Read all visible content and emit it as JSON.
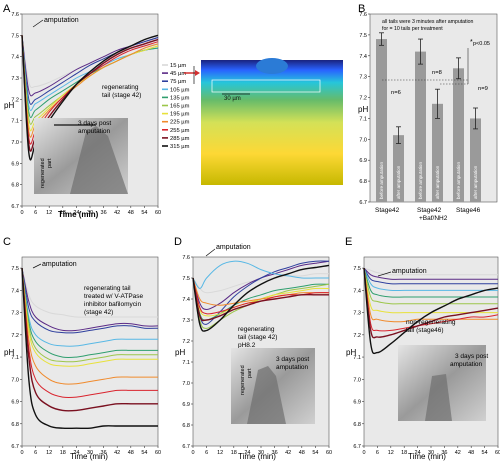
{
  "panel_letters": [
    "A",
    "B",
    "C",
    "D",
    "E"
  ],
  "colors": {
    "c15": "#d9d9d9",
    "c45": "#5a2a86",
    "c75": "#2e3f9e",
    "c105": "#58b8e5",
    "c135": "#2f9e6e",
    "c165": "#9cc64a",
    "c195": "#e8e13a",
    "c225": "#f08a2c",
    "c255": "#d9232d",
    "c285": "#7a1020",
    "c315": "#111111",
    "bar": "#9a9a9a"
  },
  "panelA": {
    "annotation_amputation": "amputation",
    "label_regen": [
      "regenerating",
      "tail (stage 42)"
    ],
    "inset_text": [
      "3 days post",
      "amputation"
    ],
    "inset_side": [
      "regenerated",
      "part"
    ],
    "xlabel": "Time (min)",
    "ylabel": "pH",
    "legend": [
      "15 µm",
      "45 µm",
      "75 µm",
      "105 µm",
      "135 µm",
      "165 µm",
      "195 µm",
      "225 µm",
      "255 µm",
      "285 µm",
      "315 µm"
    ],
    "scale_label": "30 µm"
  },
  "panelB": {
    "note": [
      "all tails were 3 minutes after amputation",
      "for = 10 tails per treatment"
    ],
    "signif": [
      "*",
      "p<0.05"
    ],
    "n_labels": [
      "n=6",
      "n=8",
      "n=9"
    ],
    "group_labels": [
      "Stage42",
      "Stage42",
      "+Baf/NH2",
      "Stage46"
    ],
    "bar_labels": [
      "before amputation",
      "after amputation"
    ],
    "ylabel": "pH"
  },
  "panelC": {
    "annotation_amputation": "amputation",
    "label": [
      "regenerating tail",
      "treated w/ V-ATPase",
      "inhibitor bafilomycin",
      "(stage 42)"
    ],
    "xlabel": "Time (min)",
    "ylabel": "pH"
  },
  "panelD": {
    "annotation_amputation": "amputation",
    "label": [
      "regenerating",
      "tail (stage 42)",
      "pH8.2"
    ],
    "inset_text": [
      "3 days post",
      "amputation"
    ],
    "inset_side": [
      "regenerated",
      "part"
    ],
    "xlabel": "Time (min)",
    "ylabel": "pH"
  },
  "panelE": {
    "annotation_amputation": "amputation",
    "label": [
      "non-regenerating",
      "tail (stage46)"
    ],
    "inset_text": [
      "3 days post",
      "amputation"
    ],
    "xlabel": "Time (min)",
    "ylabel": "pH"
  },
  "chart_data": [
    {
      "panel": "A",
      "type": "line",
      "x": [
        0,
        3,
        6,
        12,
        18,
        24,
        30,
        36,
        42,
        48,
        54,
        60
      ],
      "xticks": [
        "0",
        "6",
        "12",
        "18",
        "24",
        "30",
        "36",
        "42",
        "48",
        "54",
        "60"
      ],
      "yticks": [
        "6.7",
        "6.8",
        "6.9",
        "7.0",
        "7.1",
        "7.2",
        "7.3",
        "7.4",
        "7.5",
        "7.6"
      ],
      "ylim": [
        6.7,
        7.6
      ],
      "xlim": [
        0,
        60
      ],
      "series": [
        {
          "name": "15 µm",
          "color": "c15",
          "y": [
            7.5,
            7.28,
            7.26,
            7.28,
            7.31,
            7.34,
            7.37,
            7.4,
            7.42,
            7.44,
            7.45,
            7.46
          ]
        },
        {
          "name": "45 µm",
          "color": "c45",
          "y": [
            7.5,
            7.24,
            7.23,
            7.26,
            7.3,
            7.34,
            7.37,
            7.4,
            7.43,
            7.45,
            7.47,
            7.49
          ]
        },
        {
          "name": "75 µm",
          "color": "c75",
          "y": [
            7.5,
            7.2,
            7.2,
            7.24,
            7.28,
            7.32,
            7.36,
            7.39,
            7.42,
            7.45,
            7.47,
            7.49
          ]
        },
        {
          "name": "105 µm",
          "color": "c105",
          "y": [
            7.5,
            7.17,
            7.18,
            7.22,
            7.26,
            7.3,
            7.33,
            7.36,
            7.39,
            7.41,
            7.43,
            7.44
          ]
        },
        {
          "name": "135 µm",
          "color": "c135",
          "y": [
            7.5,
            7.14,
            7.15,
            7.2,
            7.24,
            7.28,
            7.32,
            7.35,
            7.38,
            7.41,
            7.43,
            7.44
          ]
        },
        {
          "name": "165 µm",
          "color": "c165",
          "y": [
            7.5,
            7.11,
            7.12,
            7.17,
            7.22,
            7.27,
            7.31,
            7.35,
            7.38,
            7.41,
            7.43,
            7.45
          ]
        },
        {
          "name": "195 µm",
          "color": "c195",
          "y": [
            7.5,
            7.08,
            7.1,
            7.16,
            7.22,
            7.27,
            7.31,
            7.35,
            7.38,
            7.41,
            7.43,
            7.45
          ]
        },
        {
          "name": "225 µm",
          "color": "c225",
          "y": [
            7.5,
            7.05,
            7.08,
            7.15,
            7.21,
            7.26,
            7.31,
            7.35,
            7.38,
            7.41,
            7.44,
            7.46
          ]
        },
        {
          "name": "255 µm",
          "color": "c255",
          "y": [
            7.5,
            7.02,
            7.05,
            7.14,
            7.21,
            7.27,
            7.32,
            7.36,
            7.4,
            7.43,
            7.45,
            7.47
          ]
        },
        {
          "name": "285 µm",
          "color": "c285",
          "y": [
            7.5,
            6.99,
            7.02,
            7.12,
            7.2,
            7.27,
            7.32,
            7.37,
            7.41,
            7.44,
            7.46,
            7.48
          ]
        },
        {
          "name": "315 µm",
          "color": "c315",
          "y": [
            7.5,
            6.95,
            6.99,
            7.1,
            7.19,
            7.27,
            7.33,
            7.38,
            7.42,
            7.45,
            7.48,
            7.5
          ]
        }
      ]
    },
    {
      "panel": "B",
      "type": "bar",
      "yticks": [
        "6.7",
        "6.8",
        "6.9",
        "7.0",
        "7.1",
        "7.2",
        "7.3",
        "7.4",
        "7.5",
        "7.6"
      ],
      "ylim": [
        6.7,
        7.6
      ],
      "series": [
        {
          "name": "before amputation",
          "values": [
            7.48,
            7.42,
            7.34
          ]
        },
        {
          "name": "after amputation",
          "values": [
            7.02,
            7.17,
            7.1
          ]
        }
      ],
      "errors_before": [
        0.03,
        0.06,
        0.05
      ],
      "errors_after": [
        0.04,
        0.07,
        0.05
      ],
      "categories": [
        "Stage42",
        "Stage42 +Baf/NH2",
        "Stage46"
      ]
    },
    {
      "panel": "C",
      "type": "line",
      "x": [
        0,
        3,
        6,
        12,
        18,
        24,
        30,
        36,
        42,
        48,
        54,
        60
      ],
      "xticks": [
        "0",
        "6",
        "12",
        "18",
        "24",
        "30",
        "36",
        "42",
        "48",
        "54",
        "60"
      ],
      "yticks": [
        "6.7",
        "6.8",
        "6.9",
        "7.0",
        "7.1",
        "7.2",
        "7.3",
        "7.4",
        "7.5"
      ],
      "ylim": [
        6.7,
        7.55
      ],
      "xlim": [
        0,
        60
      ],
      "series": [
        {
          "name": "15 µm",
          "color": "c15",
          "y": [
            7.5,
            7.38,
            7.33,
            7.3,
            7.29,
            7.28,
            7.28,
            7.28,
            7.28,
            7.28,
            7.28,
            7.28
          ]
        },
        {
          "name": "45 µm",
          "color": "c45",
          "y": [
            7.5,
            7.35,
            7.28,
            7.24,
            7.22,
            7.22,
            7.23,
            7.24,
            7.25,
            7.25,
            7.24,
            7.24
          ]
        },
        {
          "name": "75 µm",
          "color": "c75",
          "y": [
            7.5,
            7.32,
            7.26,
            7.22,
            7.21,
            7.21,
            7.22,
            7.23,
            7.24,
            7.24,
            7.23,
            7.23
          ]
        },
        {
          "name": "105 µm",
          "color": "c105",
          "y": [
            7.5,
            7.28,
            7.2,
            7.16,
            7.15,
            7.15,
            7.16,
            7.17,
            7.18,
            7.18,
            7.18,
            7.18
          ]
        },
        {
          "name": "135 µm",
          "color": "c135",
          "y": [
            7.5,
            7.26,
            7.17,
            7.12,
            7.1,
            7.1,
            7.11,
            7.12,
            7.13,
            7.13,
            7.13,
            7.13
          ]
        },
        {
          "name": "165 µm",
          "color": "c165",
          "y": [
            7.5,
            7.24,
            7.14,
            7.09,
            7.08,
            7.08,
            7.09,
            7.1,
            7.11,
            7.11,
            7.11,
            7.11
          ]
        },
        {
          "name": "195 µm",
          "color": "c195",
          "y": [
            7.5,
            7.22,
            7.12,
            7.07,
            7.06,
            7.06,
            7.07,
            7.08,
            7.09,
            7.09,
            7.09,
            7.09
          ]
        },
        {
          "name": "225 µm",
          "color": "c225",
          "y": [
            7.5,
            7.18,
            7.06,
            7.0,
            6.98,
            6.98,
            6.99,
            7.0,
            7.01,
            7.01,
            7.01,
            7.01
          ]
        },
        {
          "name": "255 µm",
          "color": "c255",
          "y": [
            7.5,
            7.14,
            7.0,
            6.94,
            6.92,
            6.92,
            6.93,
            6.94,
            6.95,
            6.95,
            6.95,
            6.95
          ]
        },
        {
          "name": "285 µm",
          "color": "c285",
          "y": [
            7.5,
            7.1,
            6.94,
            6.88,
            6.86,
            6.86,
            6.87,
            6.88,
            6.89,
            6.89,
            6.89,
            6.89
          ]
        },
        {
          "name": "315 µm",
          "color": "c315",
          "y": [
            7.5,
            7.0,
            6.84,
            6.79,
            6.78,
            6.78,
            6.78,
            6.79,
            6.79,
            6.79,
            6.79,
            6.79
          ]
        }
      ]
    },
    {
      "panel": "D",
      "type": "line",
      "x": [
        0,
        3,
        6,
        12,
        18,
        24,
        30,
        36,
        42,
        48,
        54,
        60
      ],
      "xticks": [
        "0",
        "6",
        "12",
        "18",
        "24",
        "30",
        "36",
        "42",
        "48",
        "54",
        "60"
      ],
      "yticks": [
        "6.7",
        "6.8",
        "6.9",
        "7.0",
        "7.1",
        "7.2",
        "7.3",
        "7.4",
        "7.5",
        "7.6"
      ],
      "ylim": [
        6.7,
        7.6
      ],
      "xlim": [
        0,
        60
      ],
      "series": [
        {
          "name": "15 µm",
          "color": "c15",
          "y": [
            7.5,
            7.45,
            7.43,
            7.44,
            7.46,
            7.48,
            7.49,
            7.5,
            7.51,
            7.51,
            7.52,
            7.52
          ]
        },
        {
          "name": "45 µm",
          "color": "c45",
          "y": [
            7.5,
            7.38,
            7.35,
            7.38,
            7.43,
            7.47,
            7.5,
            7.52,
            7.54,
            7.56,
            7.57,
            7.58
          ]
        },
        {
          "name": "75 µm",
          "color": "c75",
          "y": [
            7.5,
            7.32,
            7.28,
            7.34,
            7.41,
            7.46,
            7.5,
            7.53,
            7.55,
            7.57,
            7.58,
            7.58
          ]
        },
        {
          "name": "105 µm",
          "color": "c105",
          "y": [
            7.5,
            7.45,
            7.5,
            7.56,
            7.58,
            7.57,
            7.54,
            7.52,
            7.51,
            7.5,
            7.5,
            7.5
          ]
        },
        {
          "name": "135 µm",
          "color": "c135",
          "y": [
            7.5,
            7.33,
            7.3,
            7.33,
            7.37,
            7.4,
            7.42,
            7.44,
            7.45,
            7.46,
            7.47,
            7.47
          ]
        },
        {
          "name": "165 µm",
          "color": "c165",
          "y": [
            7.5,
            7.3,
            7.26,
            7.3,
            7.34,
            7.37,
            7.4,
            7.42,
            7.44,
            7.45,
            7.46,
            7.47
          ]
        },
        {
          "name": "195 µm",
          "color": "c195",
          "y": [
            7.5,
            7.35,
            7.32,
            7.33,
            7.36,
            7.38,
            7.4,
            7.42,
            7.43,
            7.44,
            7.45,
            7.45
          ]
        },
        {
          "name": "225 µm",
          "color": "c225",
          "y": [
            7.5,
            7.4,
            7.38,
            7.37,
            7.38,
            7.39,
            7.4,
            7.41,
            7.42,
            7.43,
            7.43,
            7.43
          ]
        },
        {
          "name": "255 µm",
          "color": "c255",
          "y": [
            7.5,
            7.36,
            7.33,
            7.34,
            7.36,
            7.38,
            7.39,
            7.41,
            7.42,
            7.42,
            7.43,
            7.43
          ]
        },
        {
          "name": "285 µm",
          "color": "c285",
          "y": [
            7.5,
            7.32,
            7.3,
            7.32,
            7.35,
            7.37,
            7.39,
            7.4,
            7.41,
            7.42,
            7.42,
            7.42
          ]
        },
        {
          "name": "315 µm",
          "color": "c315",
          "y": [
            7.5,
            7.28,
            7.25,
            7.3,
            7.37,
            7.43,
            7.47,
            7.5,
            7.52,
            7.54,
            7.55,
            7.56
          ]
        }
      ]
    },
    {
      "panel": "E",
      "type": "line",
      "x": [
        0,
        3,
        6,
        12,
        18,
        24,
        30,
        36,
        42,
        48,
        54,
        60
      ],
      "xticks": [
        "0",
        "6",
        "12",
        "18",
        "24",
        "30",
        "36",
        "42",
        "48",
        "54",
        "60"
      ],
      "yticks": [
        "6.7",
        "6.8",
        "6.9",
        "7.0",
        "7.1",
        "7.2",
        "7.3",
        "7.4",
        "7.5"
      ],
      "ylim": [
        6.7,
        7.55
      ],
      "xlim": [
        0,
        60
      ],
      "series": [
        {
          "name": "15 µm",
          "color": "c15",
          "y": [
            7.5,
            7.49,
            7.48,
            7.47,
            7.47,
            7.47,
            7.47,
            7.47,
            7.47,
            7.47,
            7.47,
            7.47
          ]
        },
        {
          "name": "45 µm",
          "color": "c45",
          "y": [
            7.5,
            7.47,
            7.46,
            7.45,
            7.45,
            7.45,
            7.45,
            7.45,
            7.45,
            7.45,
            7.45,
            7.45
          ]
        },
        {
          "name": "75 µm",
          "color": "c75",
          "y": [
            7.5,
            7.45,
            7.44,
            7.43,
            7.43,
            7.43,
            7.43,
            7.43,
            7.43,
            7.43,
            7.43,
            7.43
          ]
        },
        {
          "name": "105 µm",
          "color": "c105",
          "y": [
            7.5,
            7.43,
            7.41,
            7.4,
            7.4,
            7.4,
            7.4,
            7.4,
            7.4,
            7.4,
            7.4,
            7.4
          ]
        },
        {
          "name": "135 µm",
          "color": "c135",
          "y": [
            7.5,
            7.4,
            7.38,
            7.37,
            7.37,
            7.37,
            7.37,
            7.37,
            7.37,
            7.37,
            7.37,
            7.37
          ]
        },
        {
          "name": "165 µm",
          "color": "c165",
          "y": [
            7.5,
            7.37,
            7.35,
            7.34,
            7.34,
            7.34,
            7.34,
            7.34,
            7.34,
            7.34,
            7.34,
            7.34
          ]
        },
        {
          "name": "195 µm",
          "color": "c195",
          "y": [
            7.5,
            7.33,
            7.31,
            7.3,
            7.3,
            7.3,
            7.3,
            7.3,
            7.3,
            7.3,
            7.3,
            7.3
          ]
        },
        {
          "name": "225 µm",
          "color": "c225",
          "y": [
            7.5,
            7.29,
            7.27,
            7.26,
            7.26,
            7.27,
            7.27,
            7.27,
            7.27,
            7.27,
            7.27,
            7.27
          ]
        },
        {
          "name": "255 µm",
          "color": "c255",
          "y": [
            7.5,
            7.25,
            7.22,
            7.22,
            7.23,
            7.24,
            7.25,
            7.26,
            7.27,
            7.28,
            7.28,
            7.29
          ]
        },
        {
          "name": "285 µm",
          "color": "c285",
          "y": [
            7.5,
            7.22,
            7.19,
            7.2,
            7.22,
            7.24,
            7.26,
            7.28,
            7.29,
            7.3,
            7.31,
            7.32
          ]
        },
        {
          "name": "315 µm",
          "color": "c315",
          "y": [
            7.5,
            7.16,
            7.12,
            7.16,
            7.21,
            7.26,
            7.3,
            7.33,
            7.36,
            7.38,
            7.4,
            7.41
          ]
        }
      ]
    }
  ]
}
